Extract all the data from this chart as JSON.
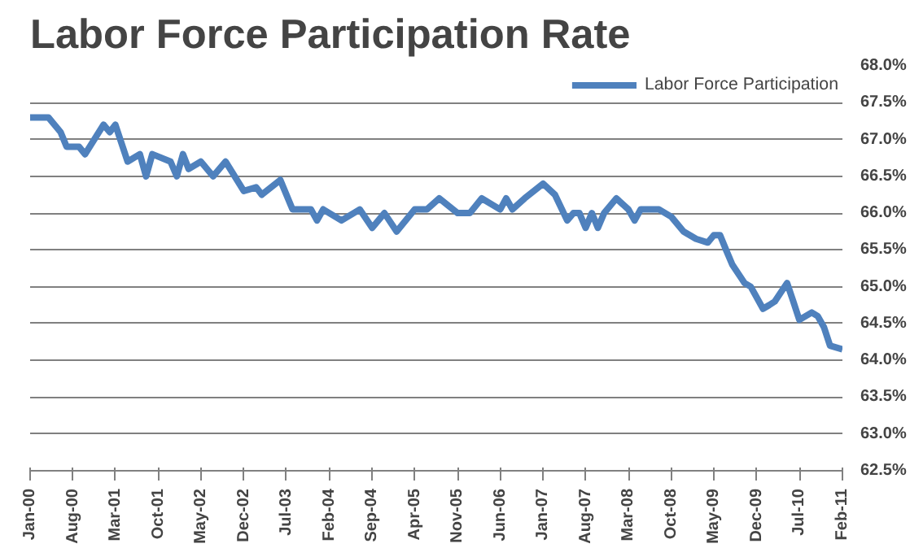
{
  "chart_data": {
    "type": "line",
    "title": "Labor Force Participation Rate",
    "x": [
      "2000-01",
      "2000-04",
      "2000-06",
      "2000-07",
      "2000-09",
      "2000-10",
      "2001-01",
      "2001-02",
      "2001-03",
      "2001-05",
      "2001-07",
      "2001-08",
      "2001-09",
      "2001-12",
      "2002-01",
      "2002-02",
      "2002-03",
      "2002-05",
      "2002-07",
      "2002-09",
      "2002-12",
      "2003-02",
      "2003-03",
      "2003-06",
      "2003-08",
      "2003-11",
      "2003-12",
      "2004-01",
      "2004-04",
      "2004-07",
      "2004-09",
      "2004-11",
      "2005-01",
      "2005-04",
      "2005-06",
      "2005-08",
      "2005-11",
      "2006-01",
      "2006-03",
      "2006-06",
      "2006-07",
      "2006-08",
      "2006-10",
      "2007-01",
      "2007-03",
      "2007-05",
      "2007-06",
      "2007-07",
      "2007-08",
      "2007-09",
      "2007-10",
      "2007-11",
      "2008-01",
      "2008-03",
      "2008-04",
      "2008-05",
      "2008-07",
      "2008-08",
      "2008-10",
      "2008-12",
      "2009-02",
      "2009-04",
      "2009-05",
      "2009-06",
      "2009-07",
      "2009-08",
      "2009-10",
      "2009-11",
      "2010-01",
      "2010-02",
      "2010-03",
      "2010-05",
      "2010-06",
      "2010-07",
      "2010-09",
      "2010-10",
      "2010-11",
      "2010-12",
      "2011-02"
    ],
    "series": [
      {
        "name": "Labor Force Participation",
        "color": "#4f81bd",
        "values": [
          67.3,
          67.3,
          67.1,
          66.9,
          66.9,
          66.8,
          67.2,
          67.1,
          67.2,
          66.7,
          66.8,
          66.5,
          66.8,
          66.7,
          66.5,
          66.8,
          66.6,
          66.7,
          66.5,
          66.7,
          66.3,
          66.35,
          66.25,
          66.45,
          66.05,
          66.05,
          65.9,
          66.05,
          65.9,
          66.05,
          65.8,
          66.0,
          65.75,
          66.05,
          66.05,
          66.2,
          66.0,
          66.0,
          66.2,
          66.05,
          66.2,
          66.05,
          66.2,
          66.4,
          66.25,
          65.9,
          66.0,
          66.0,
          65.8,
          66.0,
          65.8,
          66.0,
          66.2,
          66.05,
          65.9,
          66.05,
          66.05,
          66.05,
          65.95,
          65.75,
          65.65,
          65.6,
          65.7,
          65.7,
          65.5,
          65.3,
          65.05,
          65.0,
          64.7,
          64.75,
          64.8,
          65.05,
          64.8,
          64.55,
          64.65,
          64.6,
          64.45,
          64.2,
          64.15
        ]
      }
    ],
    "xlim": [
      "2000-01",
      "2011-02"
    ],
    "xticks": [
      {
        "value": "2000-01",
        "label": "Jan-00"
      },
      {
        "value": "2000-08",
        "label": "Aug-00"
      },
      {
        "value": "2001-03",
        "label": "Mar-01"
      },
      {
        "value": "2001-10",
        "label": "Oct-01"
      },
      {
        "value": "2002-05",
        "label": "May-02"
      },
      {
        "value": "2002-12",
        "label": "Dec-02"
      },
      {
        "value": "2003-07",
        "label": "Jul-03"
      },
      {
        "value": "2004-02",
        "label": "Feb-04"
      },
      {
        "value": "2004-09",
        "label": "Sep-04"
      },
      {
        "value": "2005-04",
        "label": "Apr-05"
      },
      {
        "value": "2005-11",
        "label": "Nov-05"
      },
      {
        "value": "2006-06",
        "label": "Jun-06"
      },
      {
        "value": "2007-01",
        "label": "Jan-07"
      },
      {
        "value": "2007-08",
        "label": "Aug-07"
      },
      {
        "value": "2008-03",
        "label": "Mar-08"
      },
      {
        "value": "2008-10",
        "label": "Oct-08"
      },
      {
        "value": "2009-05",
        "label": "May-09"
      },
      {
        "value": "2009-12",
        "label": "Dec-09"
      },
      {
        "value": "2010-07",
        "label": "Jul-10"
      },
      {
        "value": "2011-02",
        "label": "Feb-11"
      }
    ],
    "ylim": [
      62.5,
      68.0
    ],
    "yticks": [
      {
        "value": 62.5,
        "label": "62.5%"
      },
      {
        "value": 63.0,
        "label": "63.0%"
      },
      {
        "value": 63.5,
        "label": "63.5%"
      },
      {
        "value": 64.0,
        "label": "64.0%"
      },
      {
        "value": 64.5,
        "label": "64.5%"
      },
      {
        "value": 65.0,
        "label": "65.0%"
      },
      {
        "value": 65.5,
        "label": "65.5%"
      },
      {
        "value": 66.0,
        "label": "66.0%"
      },
      {
        "value": 66.5,
        "label": "66.5%"
      },
      {
        "value": 67.0,
        "label": "67.0%"
      },
      {
        "value": 67.5,
        "label": "67.5%"
      },
      {
        "value": 68.0,
        "label": "68.0%"
      }
    ],
    "grid": "y",
    "legend": "top right",
    "marker": "none",
    "line_style": "solid"
  }
}
